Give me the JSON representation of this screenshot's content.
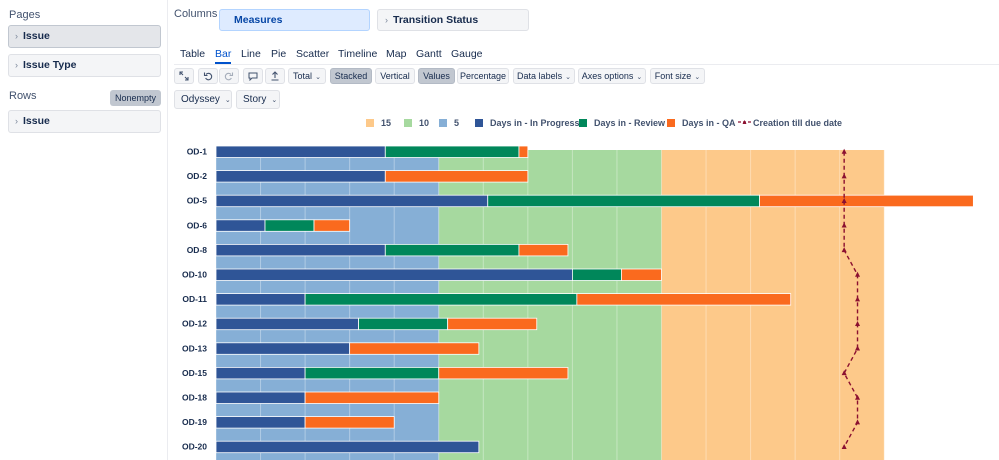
{
  "left_panel": {
    "pages_label": "Pages",
    "pages": [
      {
        "label": "Issue"
      },
      {
        "label": "Issue Type"
      }
    ],
    "rows_label": "Rows",
    "nonempty_label": "Nonempty",
    "rows": [
      {
        "label": "Issue"
      }
    ]
  },
  "columns": {
    "label": "Columns",
    "measures_label": "Measures",
    "transition_label": "Transition Status"
  },
  "chart_tabs": [
    "Table",
    "Bar",
    "Line",
    "Pie",
    "Scatter",
    "Timeline",
    "Map",
    "Gantt",
    "Gauge"
  ],
  "active_tab": "Bar",
  "toolbar": {
    "total_label": "Total",
    "stacked_label": "Stacked",
    "vertical_label": "Vertical",
    "values_label": "Values",
    "percentage_label": "Percentage",
    "data_labels_label": "Data labels",
    "axes_options_label": "Axes options",
    "font_size_label": "Font size"
  },
  "filters": {
    "project": "Odyssey",
    "issue_type": "Story"
  },
  "colors": {
    "band15": "#fdc98a",
    "band10": "#a6d99f",
    "band5": "#86afd6",
    "in_progress": "#2f5597",
    "review": "#00875a",
    "qa": "#fa6a1e",
    "line": "#8b1030",
    "accent": "#0052cc"
  },
  "chart_data": {
    "type": "bar",
    "orientation": "horizontal",
    "stacked": true,
    "title": "",
    "categories": [
      "OD-1",
      "OD-2",
      "OD-5",
      "OD-6",
      "OD-8",
      "OD-10",
      "OD-11",
      "OD-12",
      "OD-13",
      "OD-15",
      "OD-18",
      "OD-19",
      "OD-20"
    ],
    "bands": [
      {
        "name": "15",
        "from": 10,
        "to": 15
      },
      {
        "name": "10",
        "from": 5,
        "to": 10
      },
      {
        "name": "5",
        "from": 0,
        "to": 5
      }
    ],
    "series": [
      {
        "name": "Days in - In Progress",
        "values": [
          3.8,
          3.8,
          6.1,
          1.1,
          3.8,
          8.0,
          2.0,
          3.2,
          3.0,
          2.0,
          2.0,
          2.0,
          5.9
        ]
      },
      {
        "name": "Days in - Review",
        "values": [
          3.0,
          0,
          6.1,
          1.1,
          3.0,
          1.1,
          6.1,
          2.0,
          0,
          3.0,
          0,
          0,
          0
        ]
      },
      {
        "name": "Days in - QA",
        "values": [
          0.2,
          3.2,
          4.8,
          0.8,
          1.1,
          0.9,
          4.8,
          2.0,
          2.9,
          2.9,
          3.0,
          2.0,
          0
        ]
      }
    ],
    "line_series": {
      "name": "Creation till due date",
      "values": [
        14.1,
        14.1,
        14.1,
        14.1,
        14.1,
        14.4,
        14.4,
        14.4,
        14.4,
        14.1,
        14.4,
        14.4,
        14.1
      ]
    },
    "xlim": [
      0,
      17
    ]
  }
}
